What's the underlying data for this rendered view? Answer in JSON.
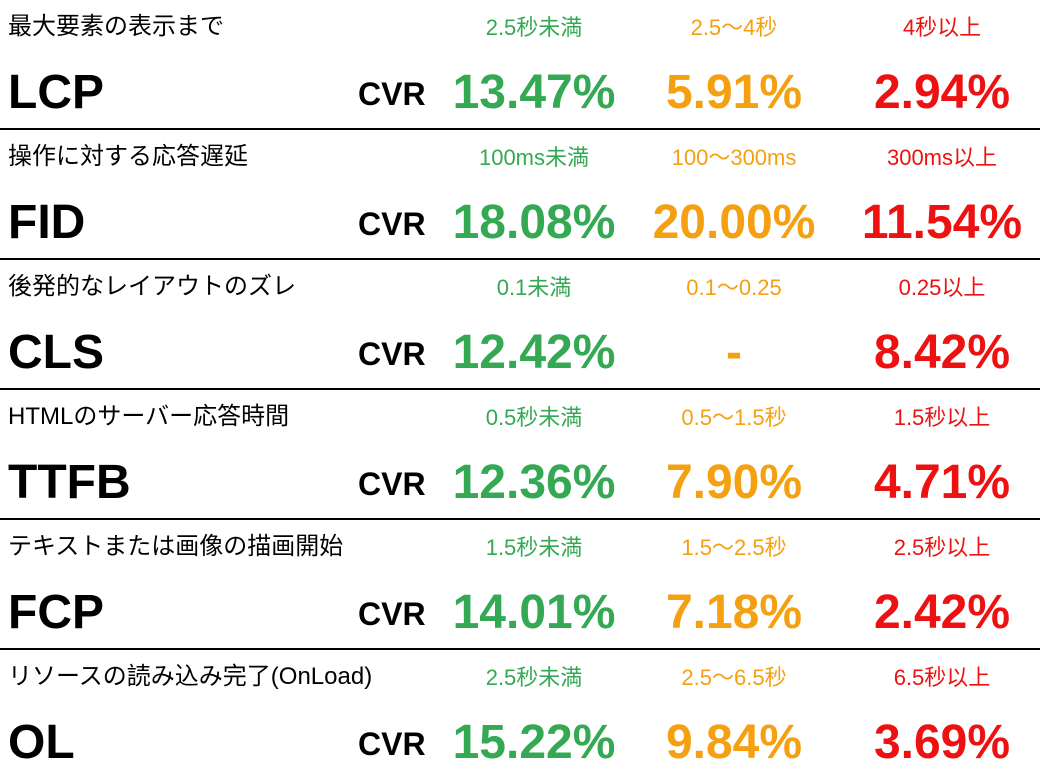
{
  "colors": {
    "good": "#34a853",
    "mid": "#f5a011",
    "bad": "#ee1111"
  },
  "cvr_label": "CVR",
  "rows": [
    {
      "description": "最大要素の表示まで",
      "metric": "LCP",
      "thresholds": [
        "2.5秒未満",
        "2.5〜4秒",
        "4秒以上"
      ],
      "values": [
        "13.47%",
        "5.91%",
        "2.94%"
      ]
    },
    {
      "description": "操作に対する応答遅延",
      "metric": "FID",
      "thresholds": [
        "100ms未満",
        "100〜300ms",
        "300ms以上"
      ],
      "values": [
        "18.08%",
        "20.00%",
        "11.54%"
      ]
    },
    {
      "description": "後発的なレイアウトのズレ",
      "metric": "CLS",
      "thresholds": [
        "0.1未満",
        "0.1〜0.25",
        "0.25以上"
      ],
      "values": [
        "12.42%",
        "-",
        "8.42%"
      ]
    },
    {
      "description": "HTMLのサーバー応答時間",
      "metric": "TTFB",
      "thresholds": [
        "0.5秒未満",
        "0.5〜1.5秒",
        "1.5秒以上"
      ],
      "values": [
        "12.36%",
        "7.90%",
        "4.71%"
      ]
    },
    {
      "description": "テキストまたは画像の描画開始",
      "metric": "FCP",
      "thresholds": [
        "1.5秒未満",
        "1.5〜2.5秒",
        "2.5秒以上"
      ],
      "values": [
        "14.01%",
        "7.18%",
        "2.42%"
      ]
    },
    {
      "description": "リソースの読み込み完了(OnLoad)",
      "metric": "OL",
      "thresholds": [
        "2.5秒未満",
        "2.5〜6.5秒",
        "6.5秒以上"
      ],
      "values": [
        "15.22%",
        "9.84%",
        "3.69%"
      ]
    }
  ]
}
